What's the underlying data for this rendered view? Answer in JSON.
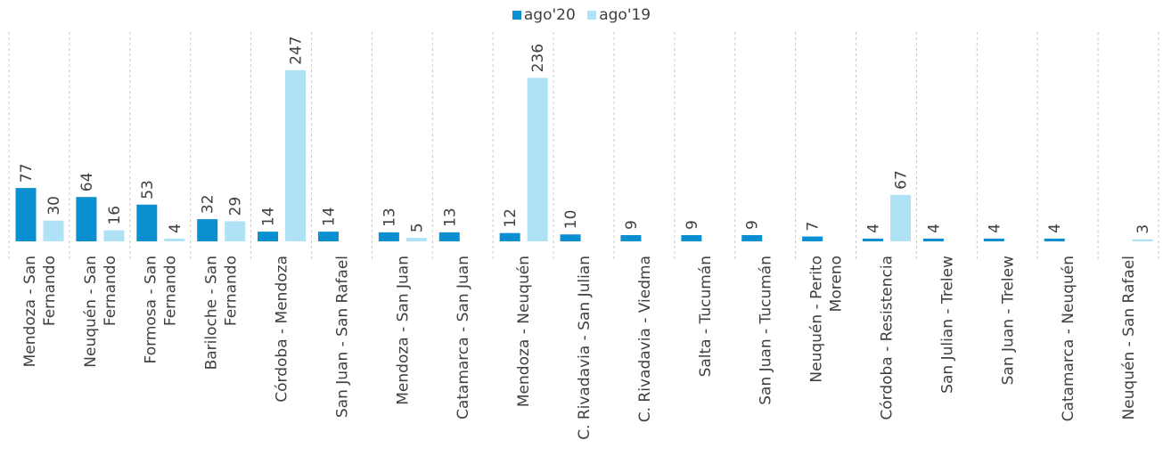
{
  "legend": {
    "position": "top-center"
  },
  "colors": {
    "ago20": "#0A8FD0",
    "ago19": "#B0E2F6"
  },
  "chart_data": {
    "type": "bar",
    "title": "",
    "xlabel": "",
    "ylabel": "",
    "grid": "vertical dashed separators",
    "categories": [
      "Mendoza - San Fernando",
      "Neuquén - San Fernando",
      "Formosa - San Fernando",
      "Bariloche - San Fernando",
      "Córdoba - Mendoza",
      "San Juan - San Rafael",
      "Mendoza - San Juan",
      "Catamarca - San Juan",
      "Mendoza - Neuquén",
      "C. Rivadavia - San Julian",
      "C. Rivadavia - Viedma",
      "Salta - Tucumán",
      "San Juan - Tucumán",
      "Neuquén - Perito Moreno",
      "Córdoba - Resistencia",
      "San Julian - Trelew",
      "San Juan - Trelew",
      "Catamarca - Neuquén",
      "Neuquén - San Rafael"
    ],
    "category_lines": [
      [
        "Mendoza - San",
        "Fernando"
      ],
      [
        "Neuquén - San",
        "Fernando"
      ],
      [
        "Formosa - San",
        "Fernando"
      ],
      [
        "Bariloche - San",
        "Fernando"
      ],
      [
        "Córdoba - Mendoza"
      ],
      [
        "San Juan - San Rafael"
      ],
      [
        "Mendoza - San Juan"
      ],
      [
        "Catamarca - San Juan"
      ],
      [
        "Mendoza - Neuquén"
      ],
      [
        "C. Rivadavia - San Julian"
      ],
      [
        "C. Rivadavia - Viedma"
      ],
      [
        "Salta - Tucumán"
      ],
      [
        "San Juan - Tucumán"
      ],
      [
        "Neuquén - Perito",
        "Moreno"
      ],
      [
        "Córdoba - Resistencia"
      ],
      [
        "San Julian - Trelew"
      ],
      [
        "San Juan - Trelew"
      ],
      [
        "Catamarca - Neuquén"
      ],
      [
        "Neuquén - San Rafael"
      ]
    ],
    "series": [
      {
        "name": "ago'20",
        "values": [
          77,
          64,
          53,
          32,
          14,
          14,
          13,
          13,
          12,
          10,
          9,
          9,
          9,
          7,
          4,
          4,
          4,
          4,
          null
        ]
      },
      {
        "name": "ago'19",
        "values": [
          30,
          16,
          4,
          29,
          247,
          null,
          5,
          null,
          236,
          null,
          null,
          null,
          null,
          null,
          67,
          null,
          null,
          null,
          3
        ]
      }
    ],
    "ylim": [
      0,
      250
    ]
  }
}
